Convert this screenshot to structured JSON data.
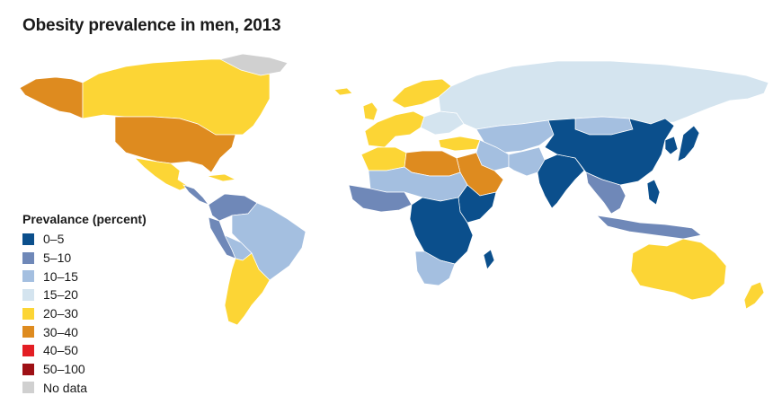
{
  "title": "Obesity prevalence in men, 2013",
  "legend": {
    "title": "Prevalance (percent)",
    "items": [
      {
        "label": "0–5",
        "color": "#0b4f8c"
      },
      {
        "label": "5–10",
        "color": "#6f88b8"
      },
      {
        "label": "10–15",
        "color": "#a4bfe0"
      },
      {
        "label": "15–20",
        "color": "#d4e4ef"
      },
      {
        "label": "20–30",
        "color": "#fcd535"
      },
      {
        "label": "30–40",
        "color": "#de8b1f"
      },
      {
        "label": "40–50",
        "color": "#e31e24"
      },
      {
        "label": "50–100",
        "color": "#9e1015"
      },
      {
        "label": "No data",
        "color": "#d0d0d0"
      }
    ]
  },
  "regions": [
    {
      "name": "alaska",
      "bin": "30–40"
    },
    {
      "name": "canada",
      "bin": "20–30"
    },
    {
      "name": "greenland",
      "bin": "No data"
    },
    {
      "name": "usa",
      "bin": "30–40"
    },
    {
      "name": "mexico",
      "bin": "20–30"
    },
    {
      "name": "central-america",
      "bin": "5–10"
    },
    {
      "name": "caribbean",
      "bin": "20–30"
    },
    {
      "name": "colombia-venezuela",
      "bin": "5–10"
    },
    {
      "name": "peru-ecuador",
      "bin": "5–10"
    },
    {
      "name": "brazil",
      "bin": "10–15"
    },
    {
      "name": "bolivia",
      "bin": "10–15"
    },
    {
      "name": "argentina-chile",
      "bin": "20–30"
    },
    {
      "name": "uk-ireland",
      "bin": "20–30"
    },
    {
      "name": "iceland",
      "bin": "20–30"
    },
    {
      "name": "scandinavia",
      "bin": "20–30"
    },
    {
      "name": "western-europe",
      "bin": "20–30"
    },
    {
      "name": "eastern-europe",
      "bin": "15–20"
    },
    {
      "name": "russia",
      "bin": "15–20"
    },
    {
      "name": "kazakhstan-central-asia",
      "bin": "10–15"
    },
    {
      "name": "mongolia",
      "bin": "10–15"
    },
    {
      "name": "turkey",
      "bin": "20–30"
    },
    {
      "name": "iran",
      "bin": "10–15"
    },
    {
      "name": "afghanistan-pakistan",
      "bin": "10–15"
    },
    {
      "name": "saudi-arabia",
      "bin": "30–40"
    },
    {
      "name": "libya-egypt",
      "bin": "30–40"
    },
    {
      "name": "north-africa-west",
      "bin": "20–30"
    },
    {
      "name": "sahel",
      "bin": "10–15"
    },
    {
      "name": "west-africa",
      "bin": "5–10"
    },
    {
      "name": "horn-of-africa",
      "bin": "0–5"
    },
    {
      "name": "central-africa",
      "bin": "0–5"
    },
    {
      "name": "southern-africa",
      "bin": "10–15"
    },
    {
      "name": "madagascar",
      "bin": "0–5"
    },
    {
      "name": "india",
      "bin": "0–5"
    },
    {
      "name": "china",
      "bin": "0–5"
    },
    {
      "name": "japan",
      "bin": "0–5"
    },
    {
      "name": "korea",
      "bin": "0–5"
    },
    {
      "name": "southeast-asia",
      "bin": "5–10"
    },
    {
      "name": "indonesia",
      "bin": "5–10"
    },
    {
      "name": "philippines",
      "bin": "0–5"
    },
    {
      "name": "australia",
      "bin": "20–30"
    },
    {
      "name": "new-zealand",
      "bin": "20–30"
    }
  ]
}
